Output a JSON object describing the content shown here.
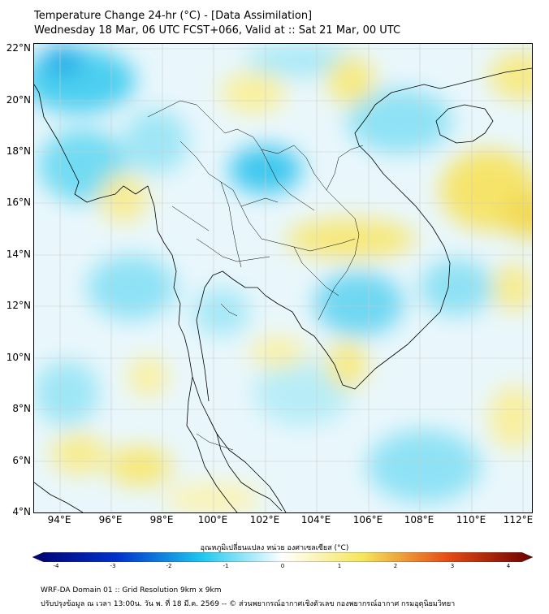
{
  "header": {
    "title_line1": "Temperature Change 24-hr (°C) - [Data Assimilation]",
    "title_line2": "Wednesday 18 Mar, 06 UTC FCST+066, Valid at :: Sat 21 Mar, 00 UTC"
  },
  "map": {
    "lat_labels": [
      "22°N",
      "20°N",
      "18°N",
      "16°N",
      "14°N",
      "12°N",
      "10°N",
      "8°N",
      "6°N",
      "4°N"
    ],
    "lon_labels": [
      "94°E",
      "96°E",
      "98°E",
      "100°E",
      "102°E",
      "104°E",
      "106°E",
      "108°E",
      "110°E",
      "112°E"
    ]
  },
  "colorbar": {
    "title": "อุณหภูมิเปลี่ยนแปลง หน่วย องศาเซลเซียส (°C)",
    "ticks": [
      "-4",
      "-3",
      "-2",
      "-1",
      "0",
      "1",
      "2",
      "3",
      "4"
    ],
    "colors": {
      "min": "#000070",
      "cold": "#0033cc",
      "cool": "#1ec8f0",
      "neutral": "#ffffff",
      "warm": "#f5e65a",
      "hot": "#e64b14",
      "max": "#6a0000"
    }
  },
  "footer": {
    "line1": "WRF-DA Domain 01 :: Grid Resolution 9km x 9km",
    "line2": "ปรับปรุงข้อมูล ณ เวลา 13:00น. วัน พ. ที่ 18 มี.ค. 2569 -- © ส่วนพยากรณ์อากาศเชิงตัวเลข กองพยากรณ์อากาศ กรมอุตุนิยมวิทยา"
  }
}
